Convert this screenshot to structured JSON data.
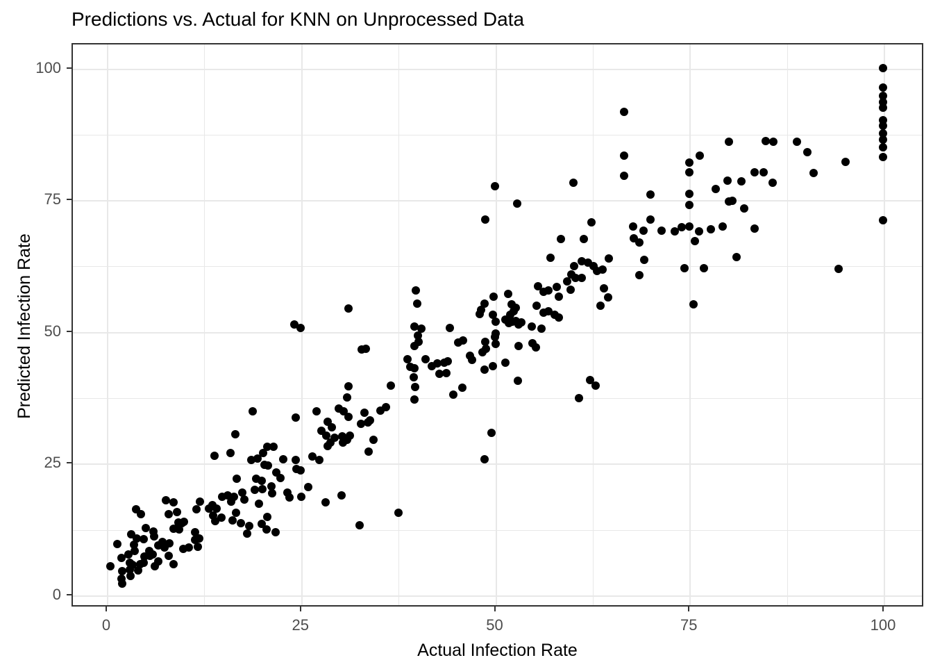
{
  "chart_data": {
    "type": "scatter",
    "title": "Predictions vs. Actual for KNN on Unprocessed Data",
    "xlabel": "Actual Infection Rate",
    "ylabel": "Predicted Infection Rate",
    "xlim": [
      0,
      100
    ],
    "ylim": [
      0,
      100
    ],
    "x_ticks": [
      0,
      25,
      50,
      75,
      100
    ],
    "y_ticks": [
      0,
      25,
      50,
      75,
      100
    ],
    "x_tick_labels": [
      "0",
      "25",
      "50",
      "75",
      "100"
    ],
    "y_tick_labels": [
      "0",
      "25",
      "50",
      "75",
      "100"
    ],
    "x_minor_ticks": [
      12.5,
      37.5,
      62.5,
      87.5
    ],
    "y_minor_ticks": [
      12.5,
      37.5,
      62.5,
      87.5
    ],
    "grid": "major+minor",
    "legend": "none",
    "point_color": "#000000",
    "background_color": "#ffffff",
    "gridline_color": "#e8e8e8",
    "border_color": "#333333",
    "tick_label_color": "#4d4d4d",
    "points": [
      [
        0.5,
        5.4
      ],
      [
        1.4,
        9.6
      ],
      [
        2.0,
        7.0
      ],
      [
        2.1,
        4.5
      ],
      [
        2.0,
        3.0
      ],
      [
        2.1,
        2.1
      ],
      [
        2.9,
        7.6
      ],
      [
        3.0,
        6.1
      ],
      [
        3.0,
        4.7
      ],
      [
        3.1,
        3.6
      ],
      [
        3.4,
        5.7
      ],
      [
        3.6,
        9.5
      ],
      [
        3.7,
        8.3
      ],
      [
        3.9,
        10.7
      ],
      [
        3.2,
        11.5
      ],
      [
        4.1,
        4.6
      ],
      [
        4.4,
        5.8
      ],
      [
        4.8,
        6.1
      ],
      [
        4.9,
        7.3
      ],
      [
        3.8,
        16.2
      ],
      [
        4.5,
        15.3
      ],
      [
        5.1,
        12.7
      ],
      [
        5.5,
        8.3
      ],
      [
        5.6,
        7.4
      ],
      [
        6.3,
        5.4
      ],
      [
        6.7,
        6.3
      ],
      [
        6.0,
        7.6
      ],
      [
        4.8,
        10.5
      ],
      [
        6.1,
        12.0
      ],
      [
        6.2,
        11.1
      ],
      [
        6.7,
        9.4
      ],
      [
        7.2,
        10.0
      ],
      [
        7.5,
        9.0
      ],
      [
        7.7,
        17.9
      ],
      [
        8.1,
        9.8
      ],
      [
        8.0,
        15.3
      ],
      [
        8.7,
        17.5
      ],
      [
        9.1,
        15.7
      ],
      [
        9.3,
        13.7
      ],
      [
        9.4,
        12.4
      ],
      [
        9.7,
        13.6
      ],
      [
        10.0,
        13.8
      ],
      [
        8.7,
        12.5
      ],
      [
        8.0,
        7.4
      ],
      [
        8.7,
        5.8
      ],
      [
        9.9,
        8.7
      ],
      [
        10.6,
        9.0
      ],
      [
        11.4,
        10.4
      ],
      [
        11.4,
        11.8
      ],
      [
        11.8,
        9.1
      ],
      [
        12.0,
        10.7
      ],
      [
        11.6,
        16.2
      ],
      [
        12.1,
        17.7
      ],
      [
        13.2,
        16.3
      ],
      [
        13.7,
        17.0
      ],
      [
        13.8,
        15.0
      ],
      [
        14.0,
        14.0
      ],
      [
        14.2,
        16.3
      ],
      [
        14.8,
        14.6
      ],
      [
        14.9,
        18.6
      ],
      [
        15.6,
        18.9
      ],
      [
        16.1,
        17.7
      ],
      [
        16.3,
        14.1
      ],
      [
        16.4,
        18.6
      ],
      [
        16.7,
        15.6
      ],
      [
        17.3,
        13.6
      ],
      [
        17.5,
        19.4
      ],
      [
        17.8,
        18.0
      ],
      [
        18.1,
        11.6
      ],
      [
        18.4,
        13.1
      ],
      [
        19.1,
        19.9
      ],
      [
        19.7,
        17.3
      ],
      [
        20.0,
        13.5
      ],
      [
        20.7,
        14.8
      ],
      [
        20.6,
        12.4
      ],
      [
        21.3,
        20.6
      ],
      [
        21.4,
        19.2
      ],
      [
        21.8,
        11.9
      ],
      [
        16.6,
        30.5
      ],
      [
        13.9,
        26.4
      ],
      [
        16.0,
        26.9
      ],
      [
        16.8,
        22.0
      ],
      [
        18.7,
        25.6
      ],
      [
        19.5,
        25.8
      ],
      [
        20.7,
        28.1
      ],
      [
        21.5,
        28.1
      ],
      [
        20.2,
        26.9
      ],
      [
        20.4,
        24.7
      ],
      [
        20.8,
        24.5
      ],
      [
        19.3,
        22.0
      ],
      [
        20.0,
        21.6
      ],
      [
        20.1,
        20.0
      ],
      [
        21.9,
        23.2
      ],
      [
        22.4,
        22.1
      ],
      [
        22.8,
        25.7
      ],
      [
        23.3,
        19.4
      ],
      [
        23.6,
        18.5
      ],
      [
        24.4,
        25.6
      ],
      [
        24.5,
        23.9
      ],
      [
        25.0,
        23.6
      ],
      [
        25.1,
        18.6
      ],
      [
        26.0,
        20.4
      ],
      [
        26.5,
        26.2
      ],
      [
        27.4,
        25.6
      ],
      [
        28.2,
        17.5
      ],
      [
        30.3,
        18.9
      ],
      [
        24.4,
        33.6
      ],
      [
        27.1,
        34.8
      ],
      [
        29.9,
        35.3
      ],
      [
        30.6,
        34.8
      ],
      [
        31.2,
        33.7
      ],
      [
        33.2,
        34.5
      ],
      [
        32.8,
        32.4
      ],
      [
        33.7,
        32.7
      ],
      [
        34.0,
        33.1
      ],
      [
        34.4,
        29.4
      ],
      [
        28.5,
        32.8
      ],
      [
        29.0,
        31.8
      ],
      [
        27.7,
        31.1
      ],
      [
        28.3,
        30.2
      ],
      [
        29.4,
        29.8
      ],
      [
        28.9,
        28.9
      ],
      [
        28.5,
        28.2
      ],
      [
        30.4,
        30.1
      ],
      [
        31.0,
        29.4
      ],
      [
        31.4,
        30.2
      ],
      [
        30.5,
        28.9
      ],
      [
        33.8,
        27.1
      ],
      [
        35.3,
        34.9
      ],
      [
        36.0,
        35.6
      ],
      [
        32.6,
        13.2
      ],
      [
        37.6,
        15.5
      ],
      [
        18.9,
        34.8
      ],
      [
        24.2,
        51.3
      ],
      [
        25.0,
        50.6
      ],
      [
        31.2,
        54.3
      ],
      [
        32.9,
        46.5
      ],
      [
        31.2,
        39.6
      ],
      [
        31.0,
        37.5
      ],
      [
        33.4,
        46.7
      ],
      [
        36.6,
        39.7
      ],
      [
        39.7,
        37.0
      ],
      [
        39.9,
        57.7
      ],
      [
        40.0,
        55.2
      ],
      [
        39.7,
        50.9
      ],
      [
        40.6,
        50.5
      ],
      [
        40.1,
        49.2
      ],
      [
        40.2,
        48.0
      ],
      [
        39.7,
        47.2
      ],
      [
        38.8,
        44.7
      ],
      [
        39.1,
        43.2
      ],
      [
        39.7,
        43.0
      ],
      [
        39.6,
        41.3
      ],
      [
        39.8,
        39.4
      ],
      [
        41.1,
        44.7
      ],
      [
        41.9,
        43.4
      ],
      [
        42.6,
        43.9
      ],
      [
        43.5,
        44.0
      ],
      [
        44.0,
        44.3
      ],
      [
        42.9,
        41.9
      ],
      [
        43.8,
        42.1
      ],
      [
        44.2,
        50.6
      ],
      [
        44.7,
        38.0
      ],
      [
        45.3,
        47.9
      ],
      [
        45.8,
        39.3
      ],
      [
        45.9,
        48.3
      ],
      [
        46.8,
        45.4
      ],
      [
        47.1,
        44.6
      ],
      [
        48.7,
        42.7
      ],
      [
        49.8,
        43.4
      ],
      [
        51.4,
        44.0
      ],
      [
        48.3,
        54.1
      ],
      [
        48.1,
        53.3
      ],
      [
        48.7,
        55.2
      ],
      [
        48.8,
        48.0
      ],
      [
        48.9,
        46.7
      ],
      [
        48.4,
        46.0
      ],
      [
        49.8,
        53.1
      ],
      [
        49.9,
        56.6
      ],
      [
        50.1,
        51.8
      ],
      [
        50.1,
        49.6
      ],
      [
        50.0,
        48.9
      ],
      [
        50.1,
        47.6
      ],
      [
        48.7,
        25.7
      ],
      [
        49.6,
        30.7
      ],
      [
        51.7,
        57.1
      ],
      [
        52.2,
        55.1
      ],
      [
        52.7,
        54.4
      ],
      [
        52.5,
        53.8
      ],
      [
        52.0,
        53.1
      ],
      [
        51.4,
        52.2
      ],
      [
        51.8,
        51.5
      ],
      [
        52.3,
        51.8
      ],
      [
        52.7,
        52.0
      ],
      [
        53.1,
        51.3
      ],
      [
        53.4,
        51.7
      ],
      [
        53.1,
        47.2
      ],
      [
        53.0,
        40.6
      ],
      [
        54.8,
        50.9
      ],
      [
        54.9,
        47.7
      ],
      [
        55.3,
        46.9
      ],
      [
        55.4,
        54.8
      ],
      [
        55.6,
        58.5
      ],
      [
        56.0,
        50.5
      ],
      [
        56.3,
        57.5
      ],
      [
        56.3,
        53.5
      ],
      [
        56.9,
        57.7
      ],
      [
        56.9,
        53.8
      ],
      [
        57.2,
        63.9
      ],
      [
        57.7,
        53.1
      ],
      [
        58.0,
        58.4
      ],
      [
        58.3,
        56.6
      ],
      [
        58.3,
        52.6
      ],
      [
        58.5,
        67.5
      ],
      [
        59.3,
        59.5
      ],
      [
        59.8,
        57.9
      ],
      [
        59.9,
        60.8
      ],
      [
        60.2,
        62.4
      ],
      [
        60.4,
        60.1
      ],
      [
        60.9,
        37.3
      ],
      [
        61.2,
        63.3
      ],
      [
        61.2,
        60.1
      ],
      [
        61.5,
        67.5
      ],
      [
        62.0,
        63.0
      ],
      [
        62.3,
        40.7
      ],
      [
        62.5,
        70.7
      ],
      [
        62.7,
        62.4
      ],
      [
        63.0,
        39.7
      ],
      [
        63.2,
        61.4
      ],
      [
        63.6,
        54.8
      ],
      [
        63.9,
        61.7
      ],
      [
        64.1,
        58.1
      ],
      [
        64.6,
        56.4
      ],
      [
        64.7,
        63.8
      ],
      [
        48.8,
        71.2
      ],
      [
        50.0,
        77.5
      ],
      [
        52.9,
        74.2
      ],
      [
        60.1,
        78.2
      ],
      [
        66.7,
        91.6
      ],
      [
        66.7,
        83.3
      ],
      [
        66.7,
        79.5
      ],
      [
        67.8,
        69.9
      ],
      [
        67.9,
        67.6
      ],
      [
        68.6,
        66.9
      ],
      [
        69.2,
        69.1
      ],
      [
        68.6,
        60.6
      ],
      [
        69.3,
        63.5
      ],
      [
        70.1,
        75.9
      ],
      [
        70.1,
        71.2
      ],
      [
        71.5,
        69.1
      ],
      [
        73.2,
        69.0
      ],
      [
        74.1,
        69.7
      ],
      [
        74.4,
        62.0
      ],
      [
        75.1,
        69.9
      ],
      [
        75.1,
        76.1
      ],
      [
        75.1,
        74.0
      ],
      [
        75.1,
        82.0
      ],
      [
        75.1,
        80.1
      ],
      [
        75.6,
        55.1
      ],
      [
        75.8,
        67.1
      ],
      [
        76.3,
        69.0
      ],
      [
        76.4,
        83.3
      ],
      [
        76.9,
        62.0
      ],
      [
        77.8,
        69.3
      ],
      [
        78.5,
        77.0
      ],
      [
        79.4,
        69.9
      ],
      [
        80.0,
        78.6
      ],
      [
        80.2,
        86.0
      ],
      [
        80.2,
        74.6
      ],
      [
        80.6,
        74.8
      ],
      [
        81.1,
        64.1
      ],
      [
        81.8,
        78.4
      ],
      [
        82.1,
        73.3
      ],
      [
        83.5,
        80.1
      ],
      [
        83.5,
        69.5
      ],
      [
        84.6,
        80.1
      ],
      [
        84.9,
        86.1
      ],
      [
        85.9,
        85.9
      ],
      [
        85.8,
        78.2
      ],
      [
        88.9,
        85.9
      ],
      [
        90.3,
        84.0
      ],
      [
        91.1,
        80.0
      ],
      [
        94.3,
        61.8
      ],
      [
        95.2,
        82.1
      ],
      [
        100,
        100
      ],
      [
        100,
        96.2
      ],
      [
        100,
        94.6
      ],
      [
        100,
        93.5
      ],
      [
        100,
        92.4
      ],
      [
        100,
        90.1
      ],
      [
        100,
        89.0
      ],
      [
        100,
        87.5
      ],
      [
        100,
        86.4
      ],
      [
        100,
        84.9
      ],
      [
        100,
        83.0
      ],
      [
        100,
        71.1
      ]
    ]
  }
}
